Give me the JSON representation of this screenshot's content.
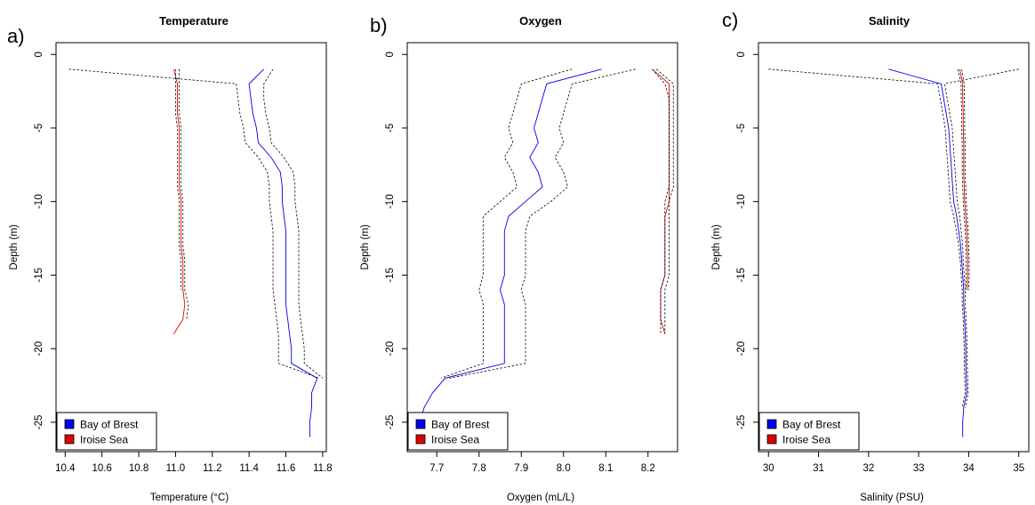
{
  "panel_letters": [
    "a)",
    "b)",
    "c)"
  ],
  "colors": {
    "bay_of_brest": "#0000ee",
    "iroise_sea": "#dd0000",
    "ci": "#000000"
  },
  "chart_data": [
    {
      "type": "line",
      "title": "Temperature",
      "xlabel": "Temperature (°C)",
      "ylabel": "Depth (m)",
      "xlim": [
        10.35,
        11.82
      ],
      "ylim": [
        -27,
        0.8
      ],
      "xticks": [
        10.4,
        10.6,
        10.8,
        11.0,
        11.2,
        11.4,
        11.6,
        11.8
      ],
      "xtick_labels": [
        "10.4",
        "10.6",
        "10.8",
        "11.0",
        "11.2",
        "11.4",
        "11.6",
        "11.8"
      ],
      "yticks": [
        0,
        -5,
        -10,
        -15,
        -20,
        -25
      ],
      "ytick_labels": [
        "0",
        "-5",
        "-10",
        "-15",
        "-20",
        "-25"
      ],
      "legend": {
        "placement": "bottom-left",
        "entries": [
          "Bay of Brest",
          "Iroise Sea"
        ]
      },
      "series": [
        {
          "name": "Bay of Brest",
          "role": "mean",
          "color": "#0000ee",
          "x": [
            11.48,
            11.4,
            11.41,
            11.42,
            11.44,
            11.45,
            11.52,
            11.57,
            11.58,
            11.58,
            11.59,
            11.6,
            11.6,
            11.6,
            11.6,
            11.6,
            11.6,
            11.61,
            11.62,
            11.63,
            11.63,
            11.77,
            11.74,
            11.74,
            11.73,
            11.73
          ],
          "y": [
            -1,
            -2,
            -3,
            -4,
            -5,
            -6,
            -7,
            -8,
            -9,
            -10,
            -11,
            -12,
            -13,
            -14,
            -15,
            -16,
            -17,
            -18,
            -19,
            -20,
            -21,
            -22,
            -23,
            -24,
            -25,
            -26
          ]
        },
        {
          "name": "Bay of Brest",
          "role": "ci",
          "color": "#000000",
          "x": [
            10.42,
            11.33,
            11.34,
            11.35,
            11.37,
            11.38,
            11.45,
            11.5,
            11.51,
            11.51,
            11.52,
            11.53,
            11.53,
            11.53,
            11.53,
            11.53,
            11.54,
            11.55,
            11.56,
            11.56,
            11.56,
            11.78
          ],
          "y": [
            -1,
            -2,
            -3,
            -4,
            -5,
            -6,
            -7,
            -8,
            -9,
            -10,
            -11,
            -12,
            -13,
            -14,
            -15,
            -16,
            -17,
            -18,
            -19,
            -20,
            -21,
            -22
          ]
        },
        {
          "name": "Bay of Brest",
          "role": "ci",
          "color": "#000000",
          "x": [
            11.53,
            11.48,
            11.48,
            11.49,
            11.51,
            11.52,
            11.59,
            11.64,
            11.65,
            11.65,
            11.66,
            11.67,
            11.67,
            11.67,
            11.67,
            11.67,
            11.67,
            11.68,
            11.69,
            11.7,
            11.7,
            11.8
          ],
          "y": [
            -1,
            -2,
            -3,
            -4,
            -5,
            -6,
            -7,
            -8,
            -9,
            -10,
            -11,
            -12,
            -13,
            -14,
            -15,
            -16,
            -17,
            -18,
            -19,
            -20,
            -21,
            -22
          ]
        },
        {
          "name": "Iroise Sea",
          "role": "mean",
          "color": "#dd0000",
          "x": [
            10.99,
            11.01,
            11.01,
            11.01,
            11.02,
            11.02,
            11.02,
            11.02,
            11.02,
            11.03,
            11.03,
            11.03,
            11.03,
            11.04,
            11.04,
            11.04,
            11.05,
            11.04,
            10.99
          ],
          "y": [
            -1,
            -2,
            -3,
            -4,
            -5,
            -6,
            -7,
            -8,
            -9,
            -10,
            -11,
            -12,
            -13,
            -14,
            -15,
            -16,
            -17,
            -18,
            -19
          ]
        },
        {
          "name": "Iroise Sea",
          "role": "ci",
          "color": "#000000",
          "x": [
            11.0,
            11.0,
            11.0,
            11.0,
            11.01,
            11.01,
            11.01,
            11.01,
            11.01,
            11.02,
            11.02,
            11.02,
            11.02,
            11.03,
            11.03,
            11.03
          ],
          "y": [
            -1,
            -2,
            -3,
            -4,
            -5,
            -6,
            -7,
            -8,
            -9,
            -10,
            -11,
            -12,
            -13,
            -14,
            -15,
            -16
          ]
        },
        {
          "name": "Iroise Sea",
          "role": "ci",
          "color": "#000000",
          "x": [
            11.02,
            11.02,
            11.02,
            11.02,
            11.03,
            11.03,
            11.03,
            11.03,
            11.03,
            11.04,
            11.04,
            11.04,
            11.04,
            11.05,
            11.05,
            11.05,
            11.07,
            11.06
          ],
          "y": [
            -1,
            -2,
            -3,
            -4,
            -5,
            -6,
            -7,
            -8,
            -9,
            -10,
            -11,
            -12,
            -13,
            -14,
            -15,
            -16,
            -17,
            -18
          ]
        }
      ]
    },
    {
      "type": "line",
      "title": "Oxygen",
      "xlabel": "Oxygen (mL/L)",
      "ylabel": "Depth (m)",
      "xlim": [
        7.63,
        8.27
      ],
      "ylim": [
        -27,
        0.8
      ],
      "xticks": [
        7.7,
        7.8,
        7.9,
        8.0,
        8.1,
        8.2
      ],
      "xtick_labels": [
        "7.7",
        "7.8",
        "7.9",
        "8.0",
        "8.1",
        "8.2"
      ],
      "yticks": [
        0,
        -5,
        -10,
        -15,
        -20,
        -25
      ],
      "ytick_labels": [
        "0",
        "-5",
        "-10",
        "-15",
        "-20",
        "-25"
      ],
      "legend": {
        "placement": "bottom-left",
        "entries": [
          "Bay of Brest",
          "Iroise Sea"
        ]
      },
      "series": [
        {
          "name": "Bay of Brest",
          "role": "mean",
          "color": "#0000ee",
          "x": [
            8.09,
            7.96,
            7.95,
            7.94,
            7.93,
            7.94,
            7.92,
            7.94,
            7.95,
            7.91,
            7.87,
            7.86,
            7.86,
            7.86,
            7.86,
            7.85,
            7.86,
            7.86,
            7.86,
            7.86,
            7.86,
            7.72,
            7.69,
            7.67,
            7.66
          ],
          "y": [
            -1,
            -2,
            -3,
            -4,
            -5,
            -6,
            -7,
            -8,
            -9,
            -10,
            -11,
            -12,
            -13,
            -14,
            -15,
            -16,
            -17,
            -18,
            -19,
            -20,
            -21,
            -22,
            -23,
            -24,
            -25
          ]
        },
        {
          "name": "Bay of Brest",
          "role": "ci",
          "color": "#000000",
          "x": [
            8.02,
            7.9,
            7.89,
            7.88,
            7.87,
            7.88,
            7.86,
            7.88,
            7.89,
            7.85,
            7.81,
            7.81,
            7.81,
            7.81,
            7.81,
            7.8,
            7.81,
            7.81,
            7.81,
            7.81,
            7.81,
            7.71
          ],
          "y": [
            -1,
            -2,
            -3,
            -4,
            -5,
            -6,
            -7,
            -8,
            -9,
            -10,
            -11,
            -12,
            -13,
            -14,
            -15,
            -16,
            -17,
            -18,
            -19,
            -20,
            -21,
            -22
          ]
        },
        {
          "name": "Bay of Brest",
          "role": "ci",
          "color": "#000000",
          "x": [
            8.17,
            8.02,
            8.01,
            8.0,
            7.99,
            8.0,
            7.98,
            8.0,
            8.01,
            7.97,
            7.92,
            7.91,
            7.91,
            7.91,
            7.91,
            7.9,
            7.91,
            7.91,
            7.91,
            7.91,
            7.91,
            7.73
          ],
          "y": [
            -1,
            -2,
            -3,
            -4,
            -5,
            -6,
            -7,
            -8,
            -9,
            -10,
            -11,
            -12,
            -13,
            -14,
            -15,
            -16,
            -17,
            -18,
            -19,
            -20,
            -21,
            -22
          ]
        },
        {
          "name": "Iroise Sea",
          "role": "mean",
          "color": "#dd0000",
          "x": [
            8.21,
            8.25,
            8.25,
            8.25,
            8.25,
            8.25,
            8.25,
            8.25,
            8.25,
            8.25,
            8.24,
            8.24,
            8.24,
            8.24,
            8.24,
            8.23,
            8.23,
            8.23,
            8.24
          ],
          "y": [
            -1,
            -2,
            -3,
            -4,
            -5,
            -6,
            -7,
            -8,
            -9,
            -10,
            -11,
            -12,
            -13,
            -14,
            -15,
            -16,
            -17,
            -18,
            -19
          ]
        },
        {
          "name": "Iroise Sea",
          "role": "ci",
          "color": "#000000",
          "x": [
            8.21,
            8.24,
            8.25,
            8.25,
            8.25,
            8.25,
            8.25,
            8.25,
            8.25,
            8.24,
            8.24,
            8.24,
            8.24,
            8.24,
            8.24,
            8.23,
            8.23,
            8.23,
            8.23
          ],
          "y": [
            -1,
            -2,
            -3,
            -4,
            -5,
            -6,
            -7,
            -8,
            -9,
            -10,
            -11,
            -12,
            -13,
            -14,
            -15,
            -16,
            -17,
            -18,
            -19
          ]
        },
        {
          "name": "Iroise Sea",
          "role": "ci",
          "color": "#000000",
          "x": [
            8.22,
            8.26,
            8.26,
            8.26,
            8.26,
            8.26,
            8.26,
            8.26,
            8.26,
            8.25,
            8.25,
            8.25,
            8.25,
            8.25,
            8.25,
            8.24,
            8.24,
            8.24,
            8.24
          ],
          "y": [
            -1,
            -2,
            -3,
            -4,
            -5,
            -6,
            -7,
            -8,
            -9,
            -10,
            -11,
            -12,
            -13,
            -14,
            -15,
            -16,
            -17,
            -18,
            -19
          ]
        }
      ]
    },
    {
      "type": "line",
      "title": "Salinity",
      "xlabel": "Salinity (PSU)",
      "ylabel": "Depth (m)",
      "xlim": [
        29.8,
        35.2
      ],
      "ylim": [
        -27,
        0.8
      ],
      "xticks": [
        30,
        31,
        32,
        33,
        34,
        35
      ],
      "xtick_labels": [
        "30",
        "31",
        "32",
        "33",
        "34",
        "35"
      ],
      "yticks": [
        0,
        -5,
        -10,
        -15,
        -20,
        -25
      ],
      "ytick_labels": [
        "0",
        "-5",
        "-10",
        "-15",
        "-20",
        "-25"
      ],
      "legend": {
        "placement": "bottom-left",
        "entries": [
          "Bay of Brest",
          "Iroise Sea"
        ]
      },
      "series": [
        {
          "name": "Bay of Brest",
          "role": "mean",
          "color": "#0000ee",
          "x": [
            32.4,
            33.45,
            33.5,
            33.55,
            33.6,
            33.62,
            33.64,
            33.66,
            33.68,
            33.7,
            33.76,
            33.8,
            33.84,
            33.86,
            33.88,
            33.9,
            33.9,
            33.92,
            33.93,
            33.94,
            33.94,
            33.95,
            33.96,
            33.9,
            33.88,
            33.88
          ],
          "y": [
            -1,
            -2,
            -3,
            -4,
            -5,
            -6,
            -7,
            -8,
            -9,
            -10,
            -11,
            -12,
            -13,
            -14,
            -15,
            -16,
            -17,
            -18,
            -19,
            -20,
            -21,
            -22,
            -23,
            -24,
            -25,
            -26
          ]
        },
        {
          "name": "Bay of Brest",
          "role": "ci",
          "color": "#000000",
          "x": [
            30.0,
            33.38,
            33.43,
            33.48,
            33.53,
            33.55,
            33.57,
            33.59,
            33.61,
            33.63,
            33.7,
            33.75,
            33.8,
            33.83,
            33.85,
            33.87,
            33.87,
            33.89,
            33.9,
            33.91,
            33.91,
            33.92,
            33.93,
            33.87
          ],
          "y": [
            -1,
            -2,
            -3,
            -4,
            -5,
            -6,
            -7,
            -8,
            -9,
            -10,
            -11,
            -12,
            -13,
            -14,
            -15,
            -16,
            -17,
            -18,
            -19,
            -20,
            -21,
            -22,
            -23,
            -24
          ]
        },
        {
          "name": "Bay of Brest",
          "role": "ci",
          "color": "#000000",
          "x": [
            35.0,
            33.52,
            33.57,
            33.62,
            33.67,
            33.69,
            33.71,
            33.73,
            33.75,
            33.77,
            33.82,
            33.85,
            33.88,
            33.89,
            33.91,
            33.93,
            33.93,
            33.95,
            33.96,
            33.97,
            33.97,
            33.98,
            33.99,
            33.93
          ],
          "y": [
            -1,
            -2,
            -3,
            -4,
            -5,
            -6,
            -7,
            -8,
            -9,
            -10,
            -11,
            -12,
            -13,
            -14,
            -15,
            -16,
            -17,
            -18,
            -19,
            -20,
            -21,
            -22,
            -23,
            -24
          ]
        },
        {
          "name": "Iroise Sea",
          "role": "mean",
          "color": "#dd0000",
          "x": [
            33.82,
            33.88,
            33.88,
            33.89,
            33.89,
            33.9,
            33.9,
            33.9,
            33.91,
            33.92,
            33.94,
            33.96,
            33.97,
            33.98,
            33.98,
            33.97
          ],
          "y": [
            -1,
            -2,
            -3,
            -4,
            -5,
            -6,
            -7,
            -8,
            -9,
            -10,
            -11,
            -12,
            -13,
            -14,
            -15,
            -16
          ]
        },
        {
          "name": "Iroise Sea",
          "role": "ci",
          "color": "#000000",
          "x": [
            33.78,
            33.85,
            33.85,
            33.86,
            33.86,
            33.87,
            33.87,
            33.87,
            33.88,
            33.89,
            33.91,
            33.93,
            33.94,
            33.95,
            33.95,
            33.94
          ],
          "y": [
            -1,
            -2,
            -3,
            -4,
            -5,
            -6,
            -7,
            -8,
            -9,
            -10,
            -11,
            -12,
            -13,
            -14,
            -15,
            -16
          ]
        },
        {
          "name": "Iroise Sea",
          "role": "ci",
          "color": "#000000",
          "x": [
            33.86,
            33.91,
            33.91,
            33.92,
            33.92,
            33.93,
            33.93,
            33.93,
            33.94,
            33.95,
            33.97,
            33.99,
            34.0,
            34.01,
            34.01,
            34.0
          ],
          "y": [
            -1,
            -2,
            -3,
            -4,
            -5,
            -6,
            -7,
            -8,
            -9,
            -10,
            -11,
            -12,
            -13,
            -14,
            -15,
            -16
          ]
        }
      ]
    }
  ]
}
